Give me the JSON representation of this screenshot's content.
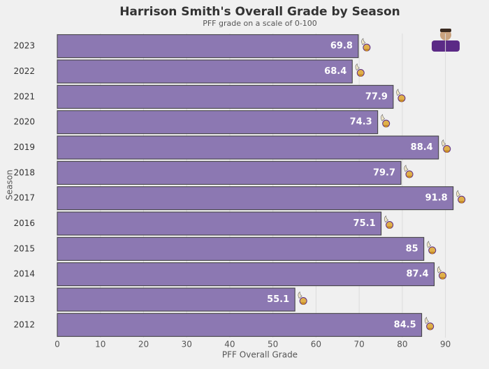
{
  "chart_data": {
    "type": "barh",
    "title": "Harrison Smith's Overall Grade by Season",
    "subtitle": "PFF grade on a scale of 0-100",
    "x_label": "PFF Overall Grade",
    "y_label": "Season",
    "categories": [
      "2023",
      "2022",
      "2021",
      "2020",
      "2019",
      "2018",
      "2017",
      "2016",
      "2015",
      "2014",
      "2013",
      "2012"
    ],
    "values": [
      69.8,
      68.4,
      77.9,
      74.3,
      88.4,
      79.7,
      91.8,
      75.1,
      85,
      87.4,
      55.1,
      84.5
    ],
    "color": "#8c78b2",
    "xlim": [
      0,
      98
    ],
    "xticks": [
      0,
      10,
      20,
      30,
      40,
      50,
      60,
      70,
      80,
      90
    ],
    "grid": true
  }
}
